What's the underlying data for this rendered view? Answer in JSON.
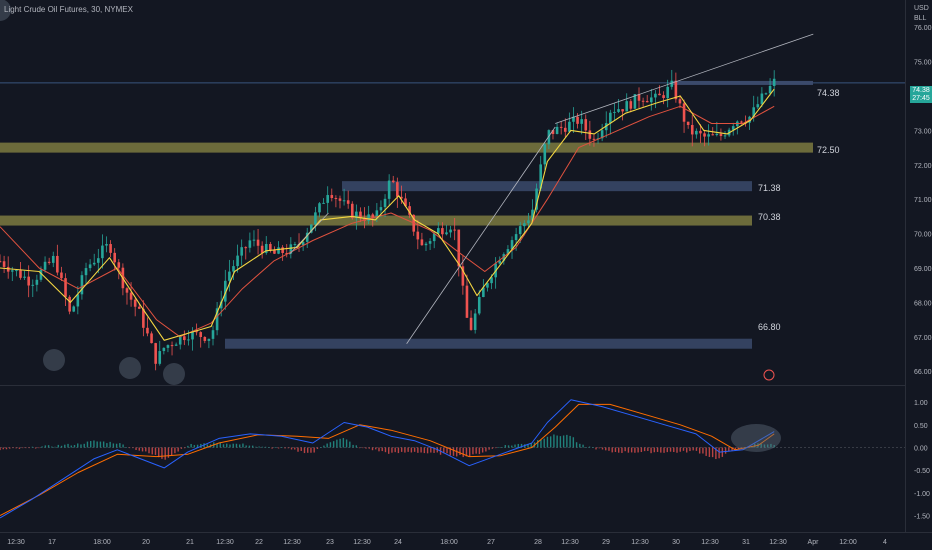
{
  "chart_title": "Light Crude Oil Futures, 30, NYMEX",
  "currency": {
    "unit": "USD",
    "per": "BLL"
  },
  "last_price": {
    "value": "74.38",
    "countdown": "27:45"
  },
  "colors": {
    "background": "#131722",
    "candle_up": "#26a69a",
    "candle_down": "#ef5350",
    "ema_fast": "#f5d742",
    "ema_slow": "#e0523f",
    "zone_yellow": "#7d7a3f",
    "zone_blue": "#3b4a6b",
    "macd_line": "#2962ff",
    "signal_line": "#ff6d00"
  },
  "levels": [
    {
      "value": "74.38",
      "type": "line"
    },
    {
      "value": "72.50",
      "type": "yellow-zone"
    },
    {
      "value": "71.38",
      "type": "blue-zone"
    },
    {
      "value": "70.38",
      "type": "yellow-zone"
    },
    {
      "value": "66.80",
      "type": "blue-zone"
    }
  ],
  "chart_data": [
    {
      "type": "candlestick",
      "title": "Light Crude Oil Futures, 30, NYMEX",
      "x_tick_labels": [
        "12:30",
        "17",
        "18:00",
        "20",
        "21",
        "12:30",
        "22",
        "12:30",
        "23",
        "12:30",
        "24",
        "18:00",
        "27",
        "28",
        "12:30",
        "29",
        "12:30",
        "30",
        "12:30",
        "31",
        "12:30",
        "Apr",
        "12:00",
        "4"
      ],
      "y_tick_labels": [
        "76.00",
        "75.00",
        "74.00",
        "73.00",
        "72.00",
        "71.00",
        "70.00",
        "69.00",
        "68.00",
        "67.00",
        "66.00"
      ],
      "ylim": [
        65.6,
        76.5
      ],
      "close_path": [
        [
          0,
          69.2
        ],
        [
          4,
          68.6
        ],
        [
          7,
          69.3
        ],
        [
          9,
          67.6
        ],
        [
          11,
          69.0
        ],
        [
          14,
          69.7
        ],
        [
          16,
          68.4
        ],
        [
          18,
          67.6
        ],
        [
          20,
          66.3
        ],
        [
          21,
          66.7
        ],
        [
          24,
          67.1
        ],
        [
          27,
          67.0
        ],
        [
          29,
          68.8
        ],
        [
          32,
          69.8
        ],
        [
          35,
          69.4
        ],
        [
          38,
          69.6
        ],
        [
          41,
          70.8
        ],
        [
          42,
          71.3
        ],
        [
          45,
          70.6
        ],
        [
          48,
          70.4
        ],
        [
          50,
          71.6
        ],
        [
          52,
          70.6
        ],
        [
          54,
          69.6
        ],
        [
          56,
          70.1
        ],
        [
          58,
          70.3
        ],
        [
          59,
          68.6
        ],
        [
          60,
          67.1
        ],
        [
          62,
          68.5
        ],
        [
          64,
          69.4
        ],
        [
          66,
          70.0
        ],
        [
          68,
          70.6
        ],
        [
          70,
          72.9
        ],
        [
          72,
          73.1
        ],
        [
          74,
          73.3
        ],
        [
          76,
          72.7
        ],
        [
          78,
          73.6
        ],
        [
          80,
          73.7
        ],
        [
          82,
          74.0
        ],
        [
          84,
          73.9
        ],
        [
          86,
          74.3
        ],
        [
          88,
          73.0
        ],
        [
          90,
          72.8
        ],
        [
          92,
          72.8
        ],
        [
          94,
          73.3
        ],
        [
          96,
          73.4
        ],
        [
          97,
          73.8
        ],
        [
          99,
          74.4
        ]
      ],
      "ema_fast_path": [
        [
          0,
          69.0
        ],
        [
          5,
          68.9
        ],
        [
          9,
          68.0
        ],
        [
          14,
          69.3
        ],
        [
          18,
          67.9
        ],
        [
          21,
          66.9
        ],
        [
          24,
          67.1
        ],
        [
          27,
          67.3
        ],
        [
          30,
          68.9
        ],
        [
          34,
          69.5
        ],
        [
          38,
          69.6
        ],
        [
          41,
          70.4
        ],
        [
          45,
          70.5
        ],
        [
          48,
          70.4
        ],
        [
          51,
          71.1
        ],
        [
          53,
          70.4
        ],
        [
          56,
          70.0
        ],
        [
          59,
          69.0
        ],
        [
          61,
          68.2
        ],
        [
          64,
          69.1
        ],
        [
          68,
          70.3
        ],
        [
          70,
          72.1
        ],
        [
          73,
          73.0
        ],
        [
          76,
          72.9
        ],
        [
          80,
          73.5
        ],
        [
          84,
          73.8
        ],
        [
          87,
          74.0
        ],
        [
          90,
          73.0
        ],
        [
          93,
          72.9
        ],
        [
          96,
          73.3
        ],
        [
          99,
          74.2
        ]
      ],
      "ema_slow_path": [
        [
          0,
          70.2
        ],
        [
          5,
          69.0
        ],
        [
          10,
          68.4
        ],
        [
          15,
          69.0
        ],
        [
          20,
          67.5
        ],
        [
          23,
          67.0
        ],
        [
          27,
          67.4
        ],
        [
          31,
          68.4
        ],
        [
          35,
          69.2
        ],
        [
          40,
          69.8
        ],
        [
          45,
          70.3
        ],
        [
          50,
          70.6
        ],
        [
          55,
          70.1
        ],
        [
          59,
          69.4
        ],
        [
          62,
          68.9
        ],
        [
          66,
          69.6
        ],
        [
          70,
          71.0
        ],
        [
          74,
          72.5
        ],
        [
          78,
          72.9
        ],
        [
          83,
          73.4
        ],
        [
          87,
          73.7
        ],
        [
          91,
          73.2
        ],
        [
          95,
          73.2
        ],
        [
          99,
          73.7
        ]
      ],
      "trend_arrows": [
        {
          "from": [
            37,
            69.4
          ],
          "to": [
            42,
            70.6
          ]
        },
        {
          "from": [
            52,
            66.8
          ],
          "to": [
            71,
            73.1
          ]
        },
        {
          "from": [
            71,
            73.2
          ],
          "to": [
            104,
            75.8
          ]
        }
      ]
    },
    {
      "type": "macd",
      "y_tick_labels": [
        "1.00",
        "0.50",
        "0.00",
        "-0.50",
        "-1.00",
        "-1.50"
      ],
      "ylim": [
        -1.75,
        1.2
      ],
      "macd_path": [
        [
          0,
          -1.55
        ],
        [
          4,
          -1.15
        ],
        [
          8,
          -0.7
        ],
        [
          12,
          -0.25
        ],
        [
          15,
          -0.05
        ],
        [
          18,
          -0.25
        ],
        [
          21,
          -0.45
        ],
        [
          24,
          -0.1
        ],
        [
          28,
          0.2
        ],
        [
          32,
          0.3
        ],
        [
          36,
          0.25
        ],
        [
          40,
          0.1
        ],
        [
          44,
          0.55
        ],
        [
          47,
          0.45
        ],
        [
          50,
          0.25
        ],
        [
          53,
          0.15
        ],
        [
          56,
          -0.05
        ],
        [
          60,
          -0.4
        ],
        [
          64,
          -0.15
        ],
        [
          68,
          0.1
        ],
        [
          70,
          0.55
        ],
        [
          73,
          1.05
        ],
        [
          77,
          0.9
        ],
        [
          81,
          0.7
        ],
        [
          85,
          0.5
        ],
        [
          89,
          0.3
        ],
        [
          92,
          -0.1
        ],
        [
          95,
          -0.05
        ],
        [
          99,
          0.35
        ]
      ],
      "signal_path": [
        [
          0,
          -1.5
        ],
        [
          5,
          -1.05
        ],
        [
          10,
          -0.55
        ],
        [
          15,
          -0.15
        ],
        [
          20,
          -0.2
        ],
        [
          24,
          -0.15
        ],
        [
          28,
          0.1
        ],
        [
          33,
          0.28
        ],
        [
          38,
          0.25
        ],
        [
          42,
          0.2
        ],
        [
          46,
          0.5
        ],
        [
          50,
          0.38
        ],
        [
          55,
          0.15
        ],
        [
          60,
          -0.2
        ],
        [
          64,
          -0.18
        ],
        [
          68,
          0.0
        ],
        [
          71,
          0.45
        ],
        [
          74,
          0.95
        ],
        [
          78,
          0.95
        ],
        [
          83,
          0.7
        ],
        [
          87,
          0.5
        ],
        [
          91,
          0.25
        ],
        [
          94,
          -0.05
        ],
        [
          97,
          0.05
        ],
        [
          99,
          0.3
        ]
      ]
    }
  ]
}
